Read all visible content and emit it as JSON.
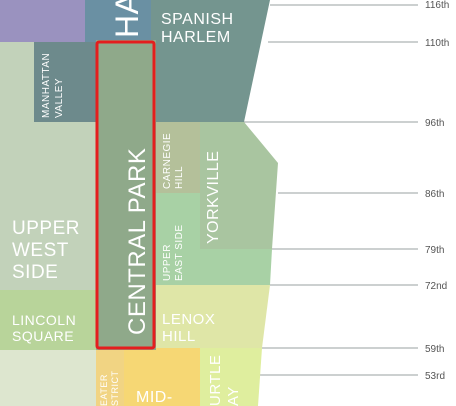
{
  "neighborhoods": {
    "harlem_partial": "HA",
    "spanish_harlem_1": "SPANISH",
    "spanish_harlem_2": "HARLEM",
    "manhattan_valley_1": "MANHATTAN",
    "manhattan_valley_2": "VALLEY",
    "central_park": "CENTRAL PARK",
    "carnegie_hill_1": "CARNEGIE",
    "carnegie_hill_2": "HILL",
    "yorkville": "YORKVILLE",
    "upper_west_side_1": "UPPER",
    "upper_west_side_2": "WEST",
    "upper_west_side_3": "SIDE",
    "upper_east_side_1": "UPPER",
    "upper_east_side_2": "EAST SIDE",
    "lincoln_square_1": "LINCOLN",
    "lincoln_square_2": "SQUARE",
    "lenox_hill_1": "LENOX",
    "lenox_hill_2": "HILL",
    "theater_district_1": "EATER",
    "theater_district_2": "STRICT",
    "midtown_partial": "MID-",
    "turtle_bay_1": "URTLE",
    "turtle_bay_2": "AY"
  },
  "streets": [
    "116th",
    "110th",
    "96th",
    "86th",
    "79th",
    "72nd",
    "59th",
    "53rd"
  ],
  "colors": {
    "highlight": "#e41e1e",
    "central_park": "#8fa98a",
    "spanish_harlem": "#74958f",
    "harlem": "#6a90a3",
    "manhattan_valley": "#6d8a8c",
    "upper_west_side": "#c2d2ba",
    "yorkville": "#a9c5a0",
    "carnegie_hill": "#b4c09a",
    "upper_east_side": "#a8d1a5",
    "lincoln_square": "#b8d49a",
    "lenox_hill": "#dfe6a7",
    "turtle_bay": "#dfee9e",
    "midtown": "#f6d774",
    "theater_district": "#f1d483"
  }
}
